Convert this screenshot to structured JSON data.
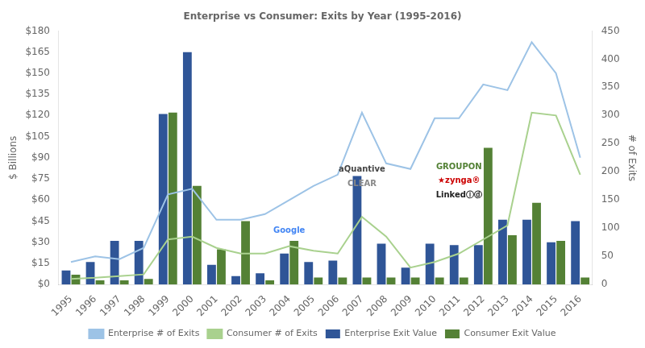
{
  "chart_data": {
    "type": "bar",
    "title": "Enterprise vs Consumer: Exits by Year (1995-2016)",
    "categories": [
      "1995",
      "1996",
      "1997",
      "1998",
      "1999",
      "2000",
      "2001",
      "2002",
      "2003",
      "2004",
      "2005",
      "2006",
      "2007",
      "2008",
      "2009",
      "2010",
      "2011",
      "2012",
      "2013",
      "2014",
      "2015",
      "2016"
    ],
    "series": [
      {
        "name": "Enterprise Exit Value",
        "type": "bar",
        "color": "#2f5597",
        "values": [
          10,
          16,
          31,
          31,
          121,
          165,
          14,
          6,
          8,
          22,
          16,
          17,
          77,
          29,
          12,
          29,
          28,
          28,
          46,
          46,
          30,
          45
        ]
      },
      {
        "name": "Consumer Exit Value",
        "type": "bar",
        "color": "#548135",
        "values": [
          7,
          3,
          3,
          4,
          122,
          70,
          25,
          45,
          3,
          31,
          5,
          5,
          5,
          5,
          5,
          5,
          5,
          97,
          35,
          58,
          31,
          5
        ]
      },
      {
        "name": "Enterprise # of Exits",
        "type": "line",
        "axis": "y2",
        "color": "#9dc3e6",
        "values": [
          40,
          50,
          45,
          65,
          160,
          170,
          115,
          115,
          125,
          150,
          175,
          195,
          305,
          215,
          205,
          295,
          295,
          355,
          345,
          430,
          375,
          225
        ]
      },
      {
        "name": "Consumer # of Exits",
        "type": "line",
        "axis": "y2",
        "color": "#a9d18e",
        "values": [
          10,
          12,
          15,
          18,
          80,
          85,
          65,
          55,
          55,
          68,
          60,
          55,
          120,
          85,
          30,
          40,
          55,
          80,
          105,
          305,
          300,
          195
        ]
      }
    ],
    "ylabel": "$ Billions",
    "y2label": "# of Exits",
    "ylim": [
      0,
      180
    ],
    "yticks": [
      {
        "value": 0,
        "label": "$0"
      },
      {
        "value": 15,
        "label": "$15"
      },
      {
        "value": 30,
        "label": "$30"
      },
      {
        "value": 45,
        "label": "$45"
      },
      {
        "value": 60,
        "label": "$60"
      },
      {
        "value": 75,
        "label": "$75"
      },
      {
        "value": 90,
        "label": "$90"
      },
      {
        "value": 105,
        "label": "$105"
      },
      {
        "value": 120,
        "label": "$120"
      },
      {
        "value": 135,
        "label": "$135"
      },
      {
        "value": 150,
        "label": "$150"
      },
      {
        "value": 165,
        "label": "$165"
      },
      {
        "value": 180,
        "label": "$180"
      }
    ],
    "y2lim": [
      0,
      450
    ],
    "y2ticks": [
      0,
      50,
      100,
      150,
      200,
      250,
      300,
      350,
      400,
      450
    ],
    "grid": false,
    "legend": "bottom",
    "annotations": [
      {
        "text": "Google",
        "x": "2004",
        "y": 37,
        "color": "#4285F4"
      },
      {
        "text": "aQuantive",
        "x": "2007",
        "y": 80,
        "color": "#444444"
      },
      {
        "text": "CLEAR",
        "x": "2007",
        "y": 70,
        "color": "#888888"
      },
      {
        "text": "GROUPON",
        "x": "2011",
        "y": 82,
        "color": "#538135"
      },
      {
        "text": "★zynga®",
        "x": "2011",
        "y": 72,
        "color": "#cc0000"
      },
      {
        "text": "LinkedⒾⓓ",
        "x": "2011",
        "y": 62,
        "color": "#222222"
      }
    ]
  }
}
